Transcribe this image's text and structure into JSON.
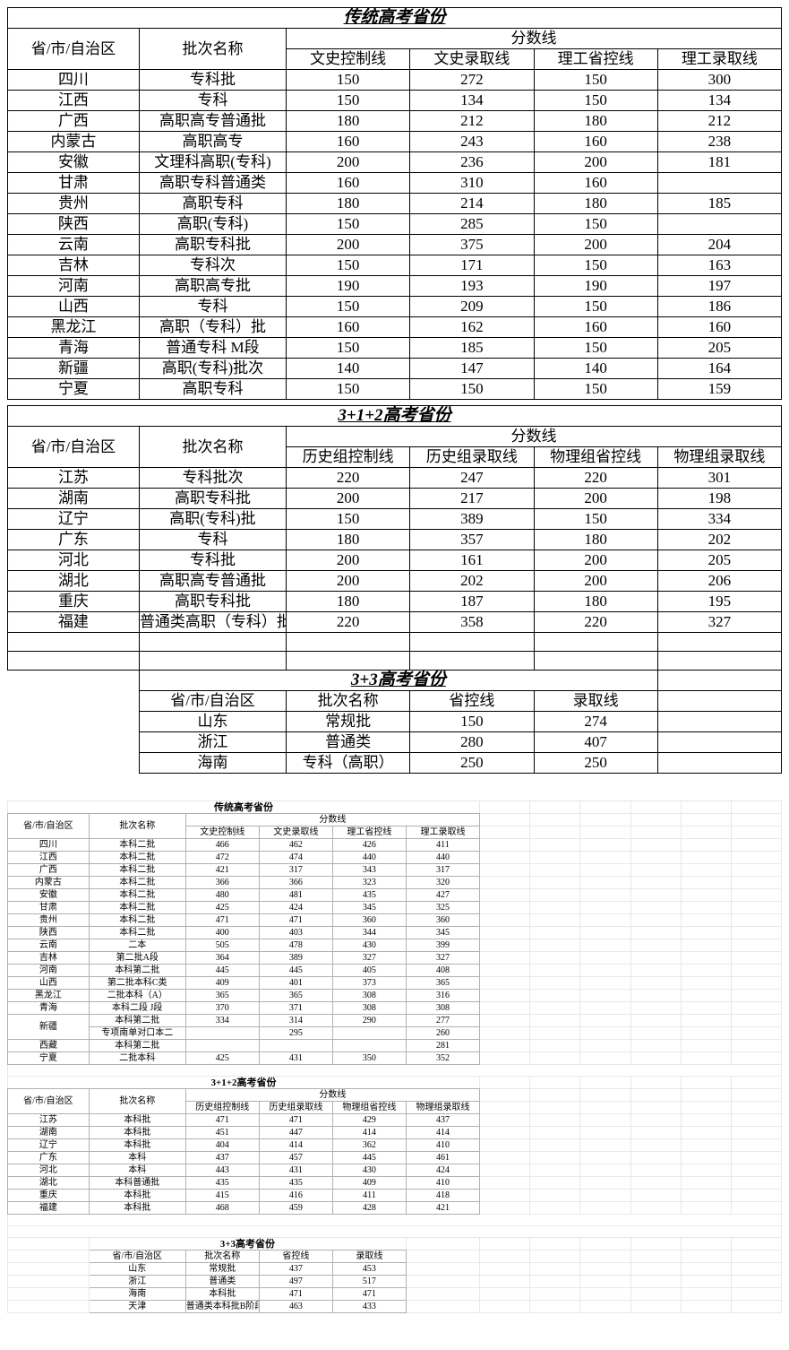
{
  "table1": {
    "title": "传统高考省份",
    "head1": [
      "省/市/自治区",
      "批次名称",
      "分数线"
    ],
    "head2": [
      "文史控制线",
      "文史录取线",
      "理工省控线",
      "理工录取线"
    ],
    "rows": [
      [
        "四川",
        "专科批",
        "150",
        "272",
        "150",
        "300"
      ],
      [
        "江西",
        "专科",
        "150",
        "134",
        "150",
        "134"
      ],
      [
        "广西",
        "高职高专普通批",
        "180",
        "212",
        "180",
        "212"
      ],
      [
        "内蒙古",
        "高职高专",
        "160",
        "243",
        "160",
        "238"
      ],
      [
        "安徽",
        "文理科高职(专科)",
        "200",
        "236",
        "200",
        "181"
      ],
      [
        "甘肃",
        "高职专科普通类",
        "160",
        "310",
        "160",
        ""
      ],
      [
        "贵州",
        "高职专科",
        "180",
        "214",
        "180",
        "185"
      ],
      [
        "陕西",
        "高职(专科)",
        "150",
        "285",
        "150",
        ""
      ],
      [
        "云南",
        "高职专科批",
        "200",
        "375",
        "200",
        "204"
      ],
      [
        "吉林",
        "专科次",
        "150",
        "171",
        "150",
        "163"
      ],
      [
        "河南",
        "高职高专批",
        "190",
        "193",
        "190",
        "197"
      ],
      [
        "山西",
        "专科",
        "150",
        "209",
        "150",
        "186"
      ],
      [
        "黑龙江",
        "高职（专科）批",
        "160",
        "162",
        "160",
        "160"
      ],
      [
        "青海",
        "普通专科 M段",
        "150",
        "185",
        "150",
        "205"
      ],
      [
        "新疆",
        "高职(专科)批次",
        "140",
        "147",
        "140",
        "164"
      ],
      [
        "宁夏",
        "高职专科",
        "150",
        "150",
        "150",
        "159"
      ]
    ]
  },
  "table2": {
    "title": "3+1+2高考省份",
    "head1": [
      "省/市/自治区",
      "批次名称",
      "分数线"
    ],
    "head2": [
      "历史组控制线",
      "历史组录取线",
      "物理组省控线",
      "物理组录取线"
    ],
    "rows": [
      [
        "江苏",
        "专科批次",
        "220",
        "247",
        "220",
        "301"
      ],
      [
        "湖南",
        "高职专科批",
        "200",
        "217",
        "200",
        "198"
      ],
      [
        "辽宁",
        "高职(专科)批",
        "150",
        "389",
        "150",
        "334"
      ],
      [
        "广东",
        "专科",
        "180",
        "357",
        "180",
        "202"
      ],
      [
        "河北",
        "专科批",
        "200",
        "161",
        "200",
        "205"
      ],
      [
        "湖北",
        "高职高专普通批",
        "200",
        "202",
        "200",
        "206"
      ],
      [
        "重庆",
        "高职专科批",
        "180",
        "187",
        "180",
        "195"
      ],
      [
        "福建",
        "普通类高职（专科）批",
        "220",
        "358",
        "220",
        "327"
      ]
    ]
  },
  "table3": {
    "title": "3+3高考省份",
    "head": [
      "省/市/自治区",
      "批次名称",
      "省控线",
      "录取线"
    ],
    "rows": [
      [
        "山东",
        "常规批",
        "150",
        "274"
      ],
      [
        "浙江",
        "普通类",
        "280",
        "407"
      ],
      [
        "海南",
        "专科（高职）",
        "250",
        "250"
      ]
    ]
  },
  "small1": {
    "title": "传统高考省份",
    "head1": [
      "省/市/自治区",
      "批次名称",
      "分数线"
    ],
    "head2": [
      "文史控制线",
      "文史录取线",
      "理工省控线",
      "理工录取线"
    ],
    "rows": [
      [
        "四川",
        "本科二批",
        "466",
        "462",
        "426",
        "411"
      ],
      [
        "江西",
        "本科二批",
        "472",
        "474",
        "440",
        "440"
      ],
      [
        "广西",
        "本科二批",
        "421",
        "317",
        "343",
        "317"
      ],
      [
        "内蒙古",
        "本科二批",
        "366",
        "366",
        "323",
        "320"
      ],
      [
        "安徽",
        "本科二批",
        "480",
        "481",
        "435",
        "427"
      ],
      [
        "甘肃",
        "本科二批",
        "425",
        "424",
        "345",
        "325"
      ],
      [
        "贵州",
        "本科二批",
        "471",
        "471",
        "360",
        "360"
      ],
      [
        "陕西",
        "本科二批",
        "400",
        "403",
        "344",
        "345"
      ],
      [
        "云南",
        "二本",
        "505",
        "478",
        "430",
        "399"
      ],
      [
        "吉林",
        "第二批A段",
        "364",
        "389",
        "327",
        "327"
      ],
      [
        "河南",
        "本科第二批",
        "445",
        "445",
        "405",
        "408"
      ],
      [
        "山西",
        "第二批本科C类",
        "409",
        "401",
        "373",
        "365"
      ],
      [
        "黑龙江",
        "二批本科（A）",
        "365",
        "365",
        "308",
        "316"
      ],
      [
        "青海",
        "本科二段 J段",
        "370",
        "371",
        "308",
        "308"
      ],
      [
        "新疆",
        "本科第二批",
        "334",
        "314",
        "290",
        "277"
      ],
      [
        "",
        "专项南单对口本二",
        "",
        "295",
        "",
        "260"
      ],
      [
        "西藏",
        "本科第二批",
        "",
        "",
        "",
        "281"
      ],
      [
        "宁夏",
        "二批本科",
        "425",
        "431",
        "350",
        "352"
      ]
    ],
    "xinjiang_rowspan_label": "新疆"
  },
  "small2": {
    "title": "3+1+2高考省份",
    "head1": [
      "省/市/自治区",
      "批次名称",
      "分数线"
    ],
    "head2": [
      "历史组控制线",
      "历史组录取线",
      "物理组省控线",
      "物理组录取线"
    ],
    "rows": [
      [
        "江苏",
        "本科批",
        "471",
        "471",
        "429",
        "437"
      ],
      [
        "湖南",
        "本科批",
        "451",
        "447",
        "414",
        "414"
      ],
      [
        "辽宁",
        "本科批",
        "404",
        "414",
        "362",
        "410"
      ],
      [
        "广东",
        "本科",
        "437",
        "457",
        "445",
        "461"
      ],
      [
        "河北",
        "本科",
        "443",
        "431",
        "430",
        "424"
      ],
      [
        "湖北",
        "本科普通批",
        "435",
        "435",
        "409",
        "410"
      ],
      [
        "重庆",
        "本科批",
        "415",
        "416",
        "411",
        "418"
      ],
      [
        "福建",
        "本科批",
        "468",
        "459",
        "428",
        "421"
      ]
    ]
  },
  "small3": {
    "title": "3+3高考省份",
    "head": [
      "省/市/自治区",
      "批次名称",
      "省控线",
      "录取线"
    ],
    "rows": [
      [
        "山东",
        "常规批",
        "437",
        "453"
      ],
      [
        "浙江",
        "普通类",
        "497",
        "517"
      ],
      [
        "海南",
        "本科批",
        "471",
        "471"
      ],
      [
        "天津",
        "普通类本科批B阶段",
        "463",
        "433"
      ]
    ]
  }
}
